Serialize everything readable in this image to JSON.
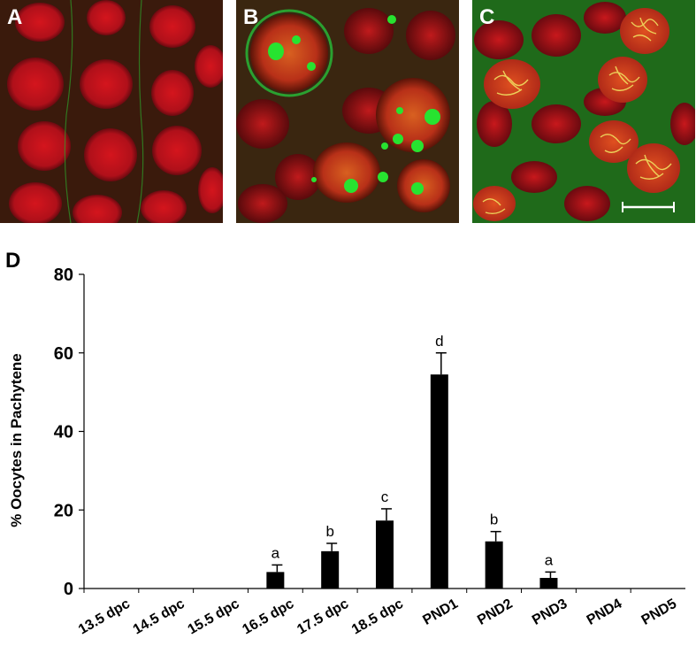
{
  "panels": [
    {
      "letter": "A"
    },
    {
      "letter": "B"
    },
    {
      "letter": "C"
    }
  ],
  "chart_panel_letter": "D",
  "colors": {
    "nucleus_red": "#c8141e",
    "dapi_green": "#22d82a",
    "background_dark": "#2a1208",
    "bar": "#000000"
  },
  "chart_data": {
    "type": "bar",
    "categories": [
      "13.5 dpc",
      "14.5 dpc",
      "15.5 dpc",
      "16.5 dpc",
      "17.5 dpc",
      "18.5 dpc",
      "PND1",
      "PND2",
      "PND3",
      "PND4",
      "PND5"
    ],
    "values": [
      0,
      0,
      0,
      4.2,
      9.5,
      17.3,
      54.5,
      12.0,
      2.7,
      0,
      0
    ],
    "errors": [
      0,
      0,
      0,
      1.8,
      2.0,
      3.0,
      5.5,
      2.5,
      1.5,
      0,
      0
    ],
    "significance": [
      "",
      "",
      "",
      "a",
      "b",
      "c",
      "d",
      "b",
      "a",
      "",
      ""
    ],
    "ylabel": "% Oocytes in Pachytene",
    "xlabel": "",
    "ylim": [
      0,
      80
    ],
    "yticks": [
      0,
      20,
      40,
      60,
      80
    ],
    "grid": false
  }
}
